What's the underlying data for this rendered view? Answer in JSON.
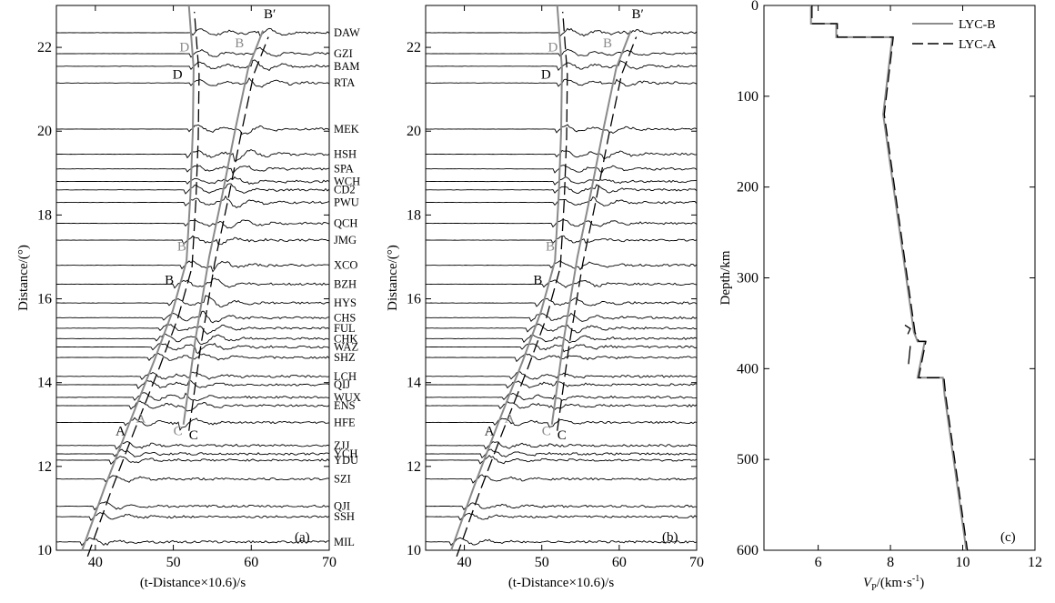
{
  "chart_data": [
    {
      "type": "line",
      "panel_label": "(a)",
      "xlabel": "(t-Distance×10.6)/s",
      "ylabel": "Distance/(°)",
      "xlim": [
        35,
        70
      ],
      "ylim": [
        10,
        23
      ],
      "xticks": [
        40,
        50,
        60,
        70
      ],
      "yticks": [
        10,
        12,
        14,
        16,
        18,
        20,
        22
      ],
      "stations": [
        {
          "name": "DAW",
          "distance": 22.35
        },
        {
          "name": "GZI",
          "distance": 21.85
        },
        {
          "name": "BAM",
          "distance": 21.55
        },
        {
          "name": "RTA",
          "distance": 21.15
        },
        {
          "name": "MEK",
          "distance": 20.05
        },
        {
          "name": "HSH",
          "distance": 19.45
        },
        {
          "name": "SPA",
          "distance": 19.1
        },
        {
          "name": "WCH",
          "distance": 18.8
        },
        {
          "name": "CD2",
          "distance": 18.6
        },
        {
          "name": "PWU",
          "distance": 18.3
        },
        {
          "name": "QCH",
          "distance": 17.8
        },
        {
          "name": "JMG",
          "distance": 17.4
        },
        {
          "name": "XCO",
          "distance": 16.8
        },
        {
          "name": "BZH",
          "distance": 16.35
        },
        {
          "name": "HYS",
          "distance": 15.9
        },
        {
          "name": "CHS",
          "distance": 15.55
        },
        {
          "name": "FUL",
          "distance": 15.3
        },
        {
          "name": "CHK",
          "distance": 15.05
        },
        {
          "name": "WAZ",
          "distance": 14.85
        },
        {
          "name": "SHZ",
          "distance": 14.6
        },
        {
          "name": "LCH",
          "distance": 14.15
        },
        {
          "name": "QIJ",
          "distance": 13.95
        },
        {
          "name": "WUX",
          "distance": 13.65
        },
        {
          "name": "ENS",
          "distance": 13.45
        },
        {
          "name": "HFE",
          "distance": 13.05
        },
        {
          "name": "ZJJ",
          "distance": 12.5
        },
        {
          "name": "YCH",
          "distance": 12.3
        },
        {
          "name": "YDU",
          "distance": 12.15
        },
        {
          "name": "SZI",
          "distance": 11.7
        },
        {
          "name": "QJI",
          "distance": 11.05
        },
        {
          "name": "SSH",
          "distance": 10.8
        },
        {
          "name": "MIL",
          "distance": 10.2
        }
      ],
      "travel_time_branches": [
        {
          "segment": "AB",
          "points": [
            [
              38.3,
              10.0
            ],
            [
              41.2,
              11.5
            ],
            [
              44.3,
              13.0
            ],
            [
              47.5,
              14.5
            ],
            [
              49.9,
              15.7
            ],
            [
              51.7,
              16.9
            ]
          ]
        },
        {
          "segment": "BD",
          "points": [
            [
              51.7,
              16.9
            ],
            [
              52.2,
              18.5
            ],
            [
              52.5,
              20.0
            ],
            [
              52.6,
              21.5
            ],
            [
              52.0,
              23.0
            ]
          ]
        },
        {
          "segment": "CB'",
          "points": [
            [
              51.3,
              13.0
            ],
            [
              52.8,
              15.0
            ],
            [
              54.6,
              17.0
            ],
            [
              56.3,
              18.5
            ],
            [
              57.9,
              20.0
            ],
            [
              59.6,
              21.5
            ],
            [
              61.5,
              22.4
            ]
          ]
        }
      ],
      "annotations": [
        {
          "text": "A",
          "x": 45.2,
          "y": 13.05
        },
        {
          "text": "A",
          "x": 42.6,
          "y": 12.75
        },
        {
          "text": "B",
          "x": 50.5,
          "y": 17.15
        },
        {
          "text": "B",
          "x": 48.9,
          "y": 16.35
        },
        {
          "text": "C",
          "x": 50.0,
          "y": 12.75
        },
        {
          "text": "C",
          "x": 52.0,
          "y": 12.65
        },
        {
          "text": "D",
          "x": 50.8,
          "y": 21.9
        },
        {
          "text": "D",
          "x": 49.9,
          "y": 21.25
        },
        {
          "text": "B",
          "x": 57.9,
          "y": 22.0
        },
        {
          "text": "B′",
          "x": 61.6,
          "y": 22.7
        }
      ]
    },
    {
      "type": "line",
      "panel_label": "(b)",
      "xlabel": "(t-Distance×10.6)/s",
      "ylabel": "Distance/(°)",
      "xlim": [
        35,
        70
      ],
      "ylim": [
        10,
        23
      ],
      "xticks": [
        40,
        50,
        60,
        70
      ],
      "yticks": [
        10,
        12,
        14,
        16,
        18,
        20,
        22
      ],
      "annotations": [
        {
          "text": "A",
          "x": 45.2,
          "y": 13.05
        },
        {
          "text": "A",
          "x": 42.6,
          "y": 12.75
        },
        {
          "text": "B",
          "x": 50.5,
          "y": 17.15
        },
        {
          "text": "B",
          "x": 48.9,
          "y": 16.35
        },
        {
          "text": "C",
          "x": 50.0,
          "y": 12.75
        },
        {
          "text": "C",
          "x": 52.0,
          "y": 12.65
        },
        {
          "text": "D",
          "x": 50.8,
          "y": 21.9
        },
        {
          "text": "D",
          "x": 49.9,
          "y": 21.25
        },
        {
          "text": "B",
          "x": 57.9,
          "y": 22.0
        },
        {
          "text": "B′",
          "x": 61.6,
          "y": 22.7
        }
      ]
    },
    {
      "type": "line",
      "panel_label": "(c)",
      "xlabel_main": "V",
      "xlabel_sub": "P",
      "xlabel_rest": "/(km·s",
      "xlabel_sup": "-1",
      "xlabel_end": ")",
      "ylabel": "Depth/km",
      "xlim": [
        4.5,
        12
      ],
      "ylim": [
        600,
        0
      ],
      "xticks": [
        6,
        8,
        10,
        12
      ],
      "yticks": [
        0,
        100,
        200,
        300,
        400,
        500,
        600
      ],
      "legend_position": "top-right",
      "series": [
        {
          "name": "LYC-B",
          "color": "#8c8c8c",
          "style": "solid",
          "points": [
            [
              5.8,
              0
            ],
            [
              5.8,
              20
            ],
            [
              6.5,
              20
            ],
            [
              6.5,
              35
            ],
            [
              8.05,
              35
            ],
            [
              7.8,
              120
            ],
            [
              8.65,
              360
            ],
            [
              8.75,
              370
            ],
            [
              8.95,
              370
            ],
            [
              8.75,
              410
            ],
            [
              9.45,
              410
            ],
            [
              9.5,
              430
            ],
            [
              10.1,
              600
            ]
          ]
        },
        {
          "name": "LYC-A",
          "color": "#000000",
          "style": "dashed",
          "points": [
            [
              5.8,
              0
            ],
            [
              5.8,
              20
            ],
            [
              6.5,
              20
            ],
            [
              6.5,
              35
            ],
            [
              8.05,
              35
            ],
            [
              7.8,
              120
            ],
            [
              8.65,
              360
            ],
            [
              8.75,
              370
            ],
            [
              8.95,
              370
            ],
            [
              8.75,
              410
            ],
            [
              9.45,
              410
            ],
            [
              9.5,
              430
            ],
            [
              10.1,
              600
            ]
          ]
        }
      ]
    }
  ]
}
